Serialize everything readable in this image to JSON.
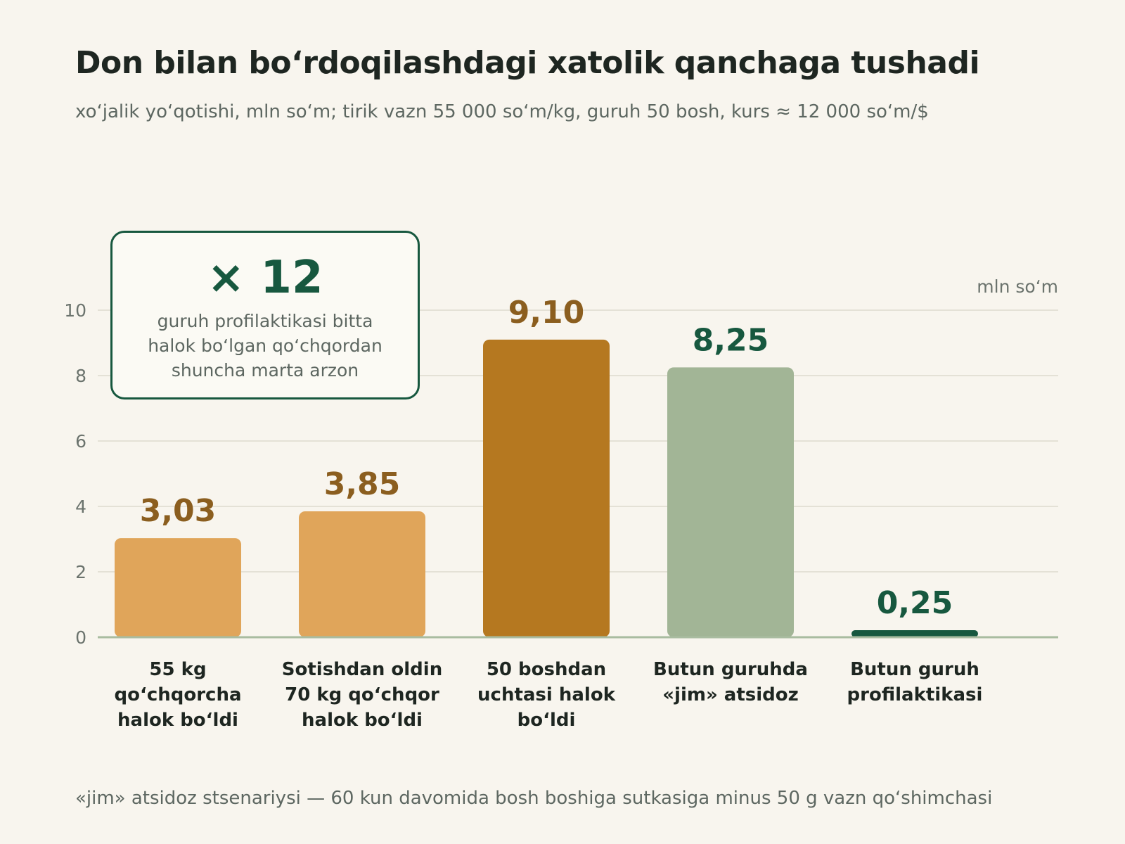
{
  "title": "Don bilan bo‘rdoqilashdagi xatolik qanchaga tushadi",
  "subtitle": "xo‘jalik yo‘qotishi, mln so‘m; tirik vazn 55 000 so‘m/kg, guruh 50 bosh, kurs ≈ 12 000 so‘m/$",
  "footnote": "«jim» atsidoz stsenariysi — 60 kun davomida bosh boshiga sutkasiga minus 50 g vazn qo‘shimchasi",
  "callout": {
    "big": "× 12",
    "text": "guruh profilaktikasi bitta halok bo‘lgan qo‘chqordan shuncha marta arzon"
  },
  "chart_data": {
    "type": "bar",
    "unit_label": "mln so‘m",
    "categories": [
      "55 kg qo‘chqorcha halok bo‘ldi",
      "Sotishdan oldin 70 kg qo‘chqor halok bo‘ldi",
      "50 boshdan uchtasi halok bo‘ldi",
      "Butun guruhda «jim» atsidoz",
      "Butun guruh profilaktikasi"
    ],
    "values": [
      3.03,
      3.85,
      9.1,
      8.25,
      0.25
    ],
    "value_labels": [
      "3,03",
      "3,85",
      "9,10",
      "8,25",
      "0,25"
    ],
    "bar_colors": [
      "#e0a55a",
      "#e0a55a",
      "#b57820",
      "#a2b596",
      "#17583f"
    ],
    "label_colors": [
      "#8b5e1f",
      "#8b5e1f",
      "#8b5e1f",
      "#17583f",
      "#17583f"
    ],
    "yticks": [
      0,
      2,
      4,
      6,
      8,
      10
    ],
    "ylim": [
      0,
      10
    ],
    "grid": true
  }
}
